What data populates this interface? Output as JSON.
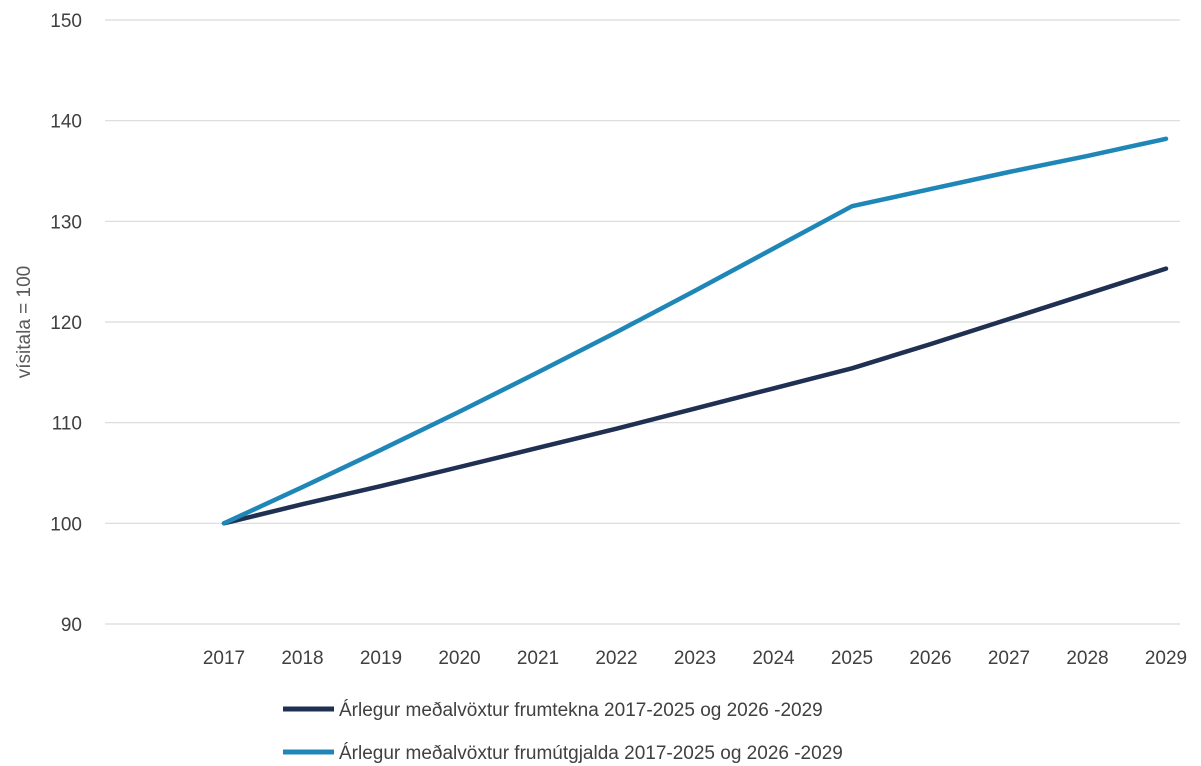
{
  "chart_data": {
    "type": "line",
    "title": "",
    "xlabel": "",
    "ylabel": "vísitala = 100",
    "x": [
      "2017",
      "2018",
      "2019",
      "2020",
      "2021",
      "2022",
      "2023",
      "2024",
      "2025",
      "2026",
      "2027",
      "2028",
      "2029"
    ],
    "ylim": [
      90,
      150
    ],
    "yticks": [
      90,
      100,
      110,
      120,
      130,
      140,
      150
    ],
    "grid": true,
    "legend_position": "bottom",
    "series": [
      {
        "name": "Árlegur meðalvöxtur frumtekna 2017-2025 og 2026 -2029",
        "color": "#1f3052",
        "values": [
          100,
          101.9,
          103.7,
          105.6,
          107.5,
          109.4,
          111.4,
          113.4,
          115.4,
          117.8,
          120.3,
          122.8,
          125.3
        ]
      },
      {
        "name": "Árlegur meðalvöxtur frumútgjalda 2017-2025 og 2026 -2029",
        "color": "#1f87b8",
        "values": [
          100,
          103.6,
          107.3,
          111.1,
          115.0,
          119.0,
          123.1,
          127.3,
          131.5,
          133.2,
          134.9,
          136.5,
          138.2
        ]
      }
    ]
  }
}
